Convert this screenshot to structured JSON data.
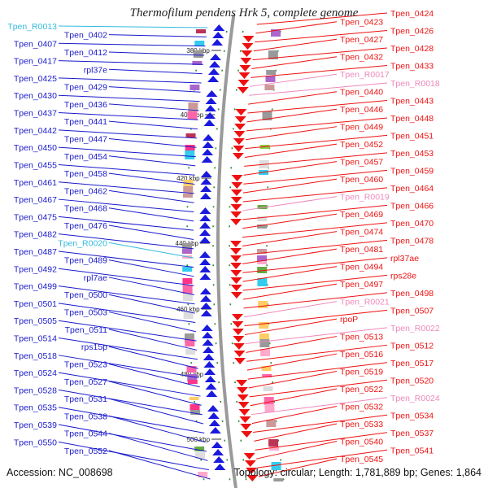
{
  "title": "Thermofilum pendens Hrk 5, complete genome",
  "accession": "Accession: NC_008698",
  "summary": "Topology: circular; Length: 1,781,889 bp; Genes: 1,864",
  "colors": {
    "left_gene": "#1a1acc",
    "right_gene": "#ee1111",
    "left_rna": "#33bbdd",
    "right_rna": "#ee88bb",
    "backbone": "#9a9a9a",
    "tick": "#2a8a2a"
  },
  "scale_ticks": [
    "380 kbp",
    "400 kbp",
    "420 kbp",
    "440 kbp",
    "460 kbp",
    "480 kbp",
    "500 kbp"
  ],
  "left_labels": [
    {
      "text": "Tpen_R0013",
      "kind": "rna"
    },
    {
      "text": "Tpen_0402",
      "kind": "gene"
    },
    {
      "text": "Tpen_0407",
      "kind": "gene"
    },
    {
      "text": "Tpen_0412",
      "kind": "gene"
    },
    {
      "text": "Tpen_0417",
      "kind": "gene"
    },
    {
      "text": "rpl37e",
      "kind": "gene"
    },
    {
      "text": "Tpen_0425",
      "kind": "gene"
    },
    {
      "text": "Tpen_0429",
      "kind": "gene"
    },
    {
      "text": "Tpen_0430",
      "kind": "gene"
    },
    {
      "text": "Tpen_0436",
      "kind": "gene"
    },
    {
      "text": "Tpen_0437",
      "kind": "gene"
    },
    {
      "text": "Tpen_0441",
      "kind": "gene"
    },
    {
      "text": "Tpen_0442",
      "kind": "gene"
    },
    {
      "text": "Tpen_0447",
      "kind": "gene"
    },
    {
      "text": "Tpen_0450",
      "kind": "gene"
    },
    {
      "text": "Tpen_0454",
      "kind": "gene"
    },
    {
      "text": "Tpen_0455",
      "kind": "gene"
    },
    {
      "text": "Tpen_0458",
      "kind": "gene"
    },
    {
      "text": "Tpen_0461",
      "kind": "gene"
    },
    {
      "text": "Tpen_0462",
      "kind": "gene"
    },
    {
      "text": "Tpen_0467",
      "kind": "gene"
    },
    {
      "text": "Tpen_0468",
      "kind": "gene"
    },
    {
      "text": "Tpen_0475",
      "kind": "gene"
    },
    {
      "text": "Tpen_0476",
      "kind": "gene"
    },
    {
      "text": "Tpen_0482",
      "kind": "gene"
    },
    {
      "text": "Tpen_R0020",
      "kind": "rna"
    },
    {
      "text": "Tpen_0487",
      "kind": "gene"
    },
    {
      "text": "Tpen_0489",
      "kind": "gene"
    },
    {
      "text": "Tpen_0492",
      "kind": "gene"
    },
    {
      "text": "rpl7ae",
      "kind": "gene"
    },
    {
      "text": "Tpen_0499",
      "kind": "gene"
    },
    {
      "text": "Tpen_0500",
      "kind": "gene"
    },
    {
      "text": "Tpen_0501",
      "kind": "gene"
    },
    {
      "text": "Tpen_0503",
      "kind": "gene"
    },
    {
      "text": "Tpen_0505",
      "kind": "gene"
    },
    {
      "text": "Tpen_0511",
      "kind": "gene"
    },
    {
      "text": "Tpen_0514",
      "kind": "gene"
    },
    {
      "text": "rps15p",
      "kind": "gene"
    },
    {
      "text": "Tpen_0518",
      "kind": "gene"
    },
    {
      "text": "Tpen_0523",
      "kind": "gene"
    },
    {
      "text": "Tpen_0524",
      "kind": "gene"
    },
    {
      "text": "Tpen_0527",
      "kind": "gene"
    },
    {
      "text": "Tpen_0528",
      "kind": "gene"
    },
    {
      "text": "Tpen_0531",
      "kind": "gene"
    },
    {
      "text": "Tpen_0535",
      "kind": "gene"
    },
    {
      "text": "Tpen_0538",
      "kind": "gene"
    },
    {
      "text": "Tpen_0539",
      "kind": "gene"
    },
    {
      "text": "Tpen_0544",
      "kind": "gene"
    },
    {
      "text": "Tpen_0550",
      "kind": "gene"
    },
    {
      "text": "Tpen_0552",
      "kind": "gene"
    }
  ],
  "right_labels": [
    {
      "text": "Tpen_0424",
      "kind": "gene"
    },
    {
      "text": "Tpen_0423",
      "kind": "gene"
    },
    {
      "text": "Tpen_0426",
      "kind": "gene"
    },
    {
      "text": "Tpen_0427",
      "kind": "gene"
    },
    {
      "text": "Tpen_0428",
      "kind": "gene"
    },
    {
      "text": "Tpen_0432",
      "kind": "gene"
    },
    {
      "text": "Tpen_0433",
      "kind": "gene"
    },
    {
      "text": "Tpen_R0017",
      "kind": "rna"
    },
    {
      "text": "Tpen_R0018",
      "kind": "rna"
    },
    {
      "text": "Tpen_0440",
      "kind": "gene"
    },
    {
      "text": "Tpen_0443",
      "kind": "gene"
    },
    {
      "text": "Tpen_0446",
      "kind": "gene"
    },
    {
      "text": "Tpen_0448",
      "kind": "gene"
    },
    {
      "text": "Tpen_0449",
      "kind": "gene"
    },
    {
      "text": "Tpen_0451",
      "kind": "gene"
    },
    {
      "text": "Tpen_0452",
      "kind": "gene"
    },
    {
      "text": "Tpen_0453",
      "kind": "gene"
    },
    {
      "text": "Tpen_0457",
      "kind": "gene"
    },
    {
      "text": "Tpen_0459",
      "kind": "gene"
    },
    {
      "text": "Tpen_0460",
      "kind": "gene"
    },
    {
      "text": "Tpen_0464",
      "kind": "gene"
    },
    {
      "text": "Tpen_R0019",
      "kind": "rna"
    },
    {
      "text": "Tpen_0466",
      "kind": "gene"
    },
    {
      "text": "Tpen_0469",
      "kind": "gene"
    },
    {
      "text": "Tpen_0470",
      "kind": "gene"
    },
    {
      "text": "Tpen_0474",
      "kind": "gene"
    },
    {
      "text": "Tpen_0478",
      "kind": "gene"
    },
    {
      "text": "Tpen_0481",
      "kind": "gene"
    },
    {
      "text": "rpl37ae",
      "kind": "gene"
    },
    {
      "text": "Tpen_0494",
      "kind": "gene"
    },
    {
      "text": "rps28e",
      "kind": "gene"
    },
    {
      "text": "Tpen_0497",
      "kind": "gene"
    },
    {
      "text": "Tpen_0498",
      "kind": "gene"
    },
    {
      "text": "Tpen_R0021",
      "kind": "rna"
    },
    {
      "text": "Tpen_0507",
      "kind": "gene"
    },
    {
      "text": "rpoP",
      "kind": "gene"
    },
    {
      "text": "Tpen_R0022",
      "kind": "rna"
    },
    {
      "text": "Tpen_0513",
      "kind": "gene"
    },
    {
      "text": "Tpen_0512",
      "kind": "gene"
    },
    {
      "text": "Tpen_0516",
      "kind": "gene"
    },
    {
      "text": "Tpen_0517",
      "kind": "gene"
    },
    {
      "text": "Tpen_0519",
      "kind": "gene"
    },
    {
      "text": "Tpen_0520",
      "kind": "gene"
    },
    {
      "text": "Tpen_0522",
      "kind": "gene"
    },
    {
      "text": "Tpen_R0024",
      "kind": "rna"
    },
    {
      "text": "Tpen_0532",
      "kind": "gene"
    },
    {
      "text": "Tpen_0534",
      "kind": "gene"
    },
    {
      "text": "Tpen_0533",
      "kind": "gene"
    },
    {
      "text": "Tpen_0537",
      "kind": "gene"
    },
    {
      "text": "Tpen_0540",
      "kind": "gene"
    },
    {
      "text": "Tpen_0541",
      "kind": "gene"
    },
    {
      "text": "Tpen_0545",
      "kind": "gene"
    }
  ]
}
